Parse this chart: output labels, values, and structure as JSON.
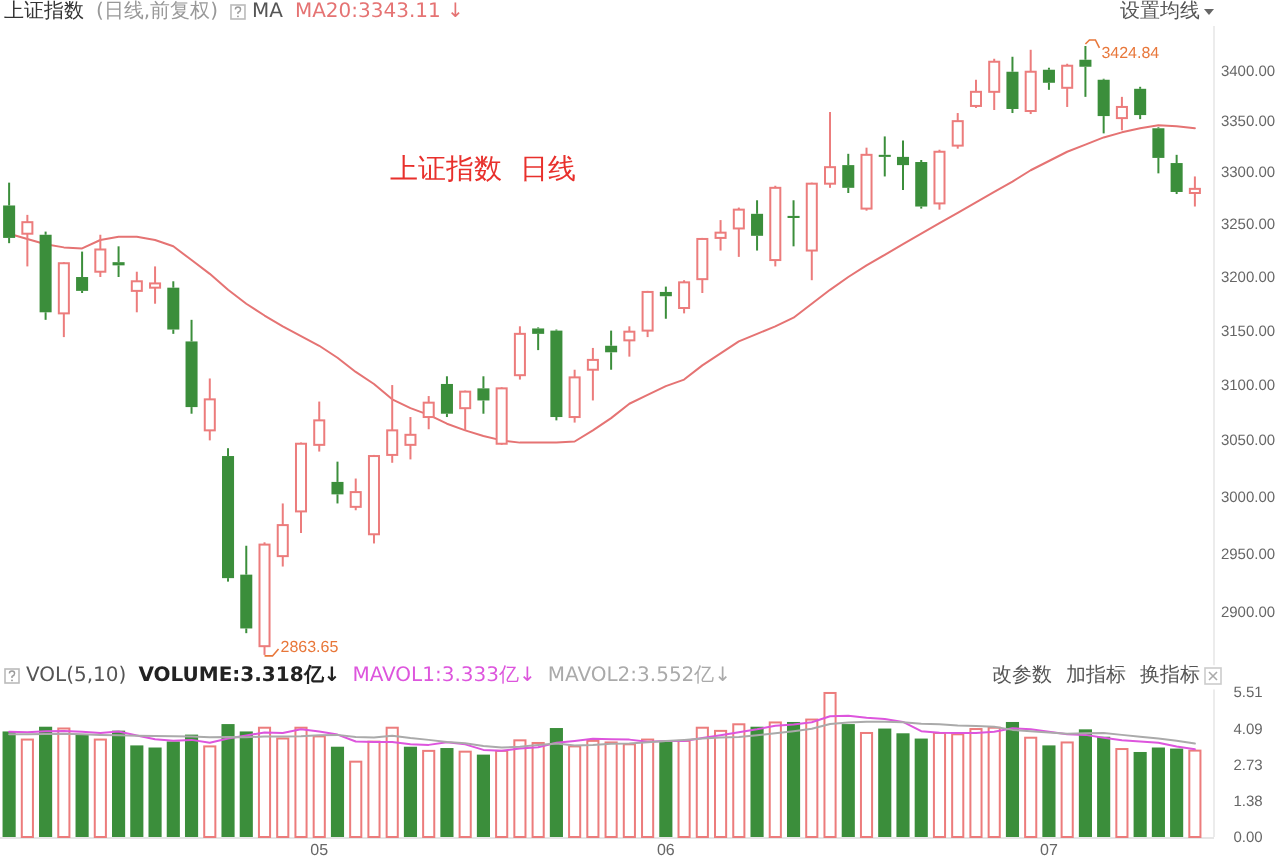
{
  "chart_data": [
    {
      "type": "candlestick",
      "title": "上证指数",
      "subtitle": "(日线,前复权)",
      "legend_title": "MA",
      "legend": "top left",
      "log": true,
      "categories": [
        null,
        null,
        null,
        null,
        null,
        null,
        null,
        null,
        null,
        null,
        null,
        null,
        null,
        null,
        null,
        null,
        null,
        null,
        null,
        null,
        null,
        null,
        null,
        null,
        null,
        null,
        null,
        null,
        null,
        null,
        null,
        null,
        null,
        null,
        null,
        null,
        null,
        null,
        null,
        null,
        null,
        null,
        null,
        null,
        null,
        null,
        null,
        null,
        null,
        null,
        null,
        null,
        null,
        null,
        null,
        null,
        null,
        null,
        null,
        null,
        null,
        null,
        null,
        null,
        null,
        null
      ],
      "ohlc": [
        [
          3268,
          3290,
          3232,
          3237
        ],
        [
          3241,
          3259,
          3210,
          3252
        ],
        [
          3240,
          3243,
          3160,
          3167
        ],
        [
          3166,
          3214,
          3144,
          3213
        ],
        [
          3200,
          3224,
          3185,
          3187
        ],
        [
          3205,
          3240,
          3200,
          3226
        ],
        [
          3214,
          3229,
          3200,
          3211
        ],
        [
          3187,
          3205,
          3167,
          3196
        ],
        [
          3190,
          3210,
          3175,
          3194
        ],
        [
          3190,
          3196,
          3147,
          3151
        ],
        [
          3140,
          3160,
          3074,
          3080
        ],
        [
          3059,
          3106,
          3050,
          3087
        ],
        [
          3036,
          3043,
          2926,
          2929
        ],
        [
          2932,
          2957,
          2882,
          2886
        ],
        [
          2871,
          2960,
          2863.65,
          2958
        ],
        [
          2948,
          2994,
          2939,
          2975
        ],
        [
          2987,
          3048,
          2968,
          3047
        ],
        [
          3046,
          3085,
          3040,
          3068
        ],
        [
          3013,
          3031,
          2994,
          3002
        ],
        [
          2991,
          3016,
          2988,
          3004
        ],
        [
          2967,
          3037,
          2959,
          3036
        ],
        [
          3037,
          3100,
          3030,
          3059
        ],
        [
          3046,
          3071,
          3033,
          3055
        ],
        [
          3071,
          3090,
          3060,
          3084
        ],
        [
          3101,
          3108,
          3071,
          3074
        ],
        [
          3079,
          3095,
          3059,
          3094
        ],
        [
          3097,
          3108,
          3074,
          3086
        ],
        [
          3047,
          3098,
          3046,
          3097
        ],
        [
          3109,
          3154,
          3105,
          3147
        ],
        [
          3152,
          3153,
          3132,
          3147
        ],
        [
          3150,
          3151,
          3068,
          3071
        ],
        [
          3071,
          3114,
          3066,
          3107
        ],
        [
          3114,
          3134,
          3086,
          3123
        ],
        [
          3136,
          3150,
          3114,
          3130
        ],
        [
          3141,
          3154,
          3126,
          3149
        ],
        [
          3150,
          3187,
          3144,
          3186
        ],
        [
          3186,
          3191,
          3161,
          3182
        ],
        [
          3171,
          3197,
          3166,
          3195
        ],
        [
          3198,
          3237,
          3185,
          3236
        ],
        [
          3237,
          3254,
          3225,
          3242
        ],
        [
          3246,
          3266,
          3219,
          3264
        ],
        [
          3260,
          3273,
          3225,
          3239
        ],
        [
          3216,
          3287,
          3210,
          3285
        ],
        [
          3258,
          3273,
          3229,
          3256
        ],
        [
          3225,
          3290,
          3197,
          3289
        ],
        [
          3289,
          3359,
          3285,
          3305
        ],
        [
          3307,
          3318,
          3280,
          3285
        ],
        [
          3265,
          3324,
          3263,
          3317
        ],
        [
          3317,
          3335,
          3296,
          3315
        ],
        [
          3315,
          3331,
          3283,
          3307
        ],
        [
          3310,
          3312,
          3265,
          3267
        ],
        [
          3270,
          3322,
          3264,
          3320
        ],
        [
          3326,
          3358,
          3323,
          3350
        ],
        [
          3365,
          3391,
          3363,
          3379
        ],
        [
          3379,
          3412,
          3361,
          3409
        ],
        [
          3399,
          3414,
          3358,
          3362
        ],
        [
          3360,
          3421,
          3357,
          3399
        ],
        [
          3401,
          3403,
          3381,
          3388
        ],
        [
          3383,
          3407,
          3364,
          3405
        ],
        [
          3411,
          3424.84,
          3374,
          3404
        ],
        [
          3391,
          3392,
          3338,
          3355
        ],
        [
          3353,
          3374,
          3341,
          3364
        ],
        [
          3382,
          3384,
          3352,
          3356
        ],
        [
          3343,
          3344,
          3299,
          3314
        ],
        [
          3309,
          3317,
          3279,
          3281
        ],
        [
          3280,
          3296,
          3267,
          3284
        ]
      ],
      "colors": [
        "#3b8e3b",
        "#ec7c7c",
        "#3b8e3b",
        "#ec7c7c",
        "#3b8e3b",
        "#ec7c7c",
        "#3b8e3b",
        "#ec7c7c",
        "#ec7c7c",
        "#3b8e3b",
        "#3b8e3b",
        "#ec7c7c",
        "#3b8e3b",
        "#3b8e3b",
        "#ec7c7c",
        "#ec7c7c",
        "#ec7c7c",
        "#ec7c7c",
        "#3b8e3b",
        "#ec7c7c",
        "#ec7c7c",
        "#ec7c7c",
        "#ec7c7c",
        "#ec7c7c",
        "#3b8e3b",
        "#ec7c7c",
        "#3b8e3b",
        "#ec7c7c",
        "#ec7c7c",
        "#3b8e3b",
        "#3b8e3b",
        "#ec7c7c",
        "#ec7c7c",
        "#3b8e3b",
        "#ec7c7c",
        "#ec7c7c",
        "#3b8e3b",
        "#ec7c7c",
        "#ec7c7c",
        "#ec7c7c",
        "#ec7c7c",
        "#3b8e3b",
        "#ec7c7c",
        "#3b8e3b",
        "#ec7c7c",
        "#ec7c7c",
        "#3b8e3b",
        "#ec7c7c",
        "#3b8e3b",
        "#3b8e3b",
        "#3b8e3b",
        "#ec7c7c",
        "#ec7c7c",
        "#ec7c7c",
        "#ec7c7c",
        "#3b8e3b",
        "#ec7c7c",
        "#3b8e3b",
        "#ec7c7c",
        "#3b8e3b",
        "#3b8e3b",
        "#ec7c7c",
        "#3b8e3b",
        "#3b8e3b",
        "#3b8e3b",
        "#ec7c7c"
      ],
      "series": [
        {
          "name": "MA20:3343.11 ↓",
          "type": "line",
          "color": "#e57373",
          "values": [
            3241,
            3236,
            3231,
            3228,
            3227,
            3235,
            3238,
            3238,
            3235,
            3229,
            3216,
            3203,
            3188,
            3175,
            3164,
            3154,
            3145,
            3136,
            3125,
            3112,
            3101,
            3087,
            3079,
            3073,
            3065,
            3059,
            3054,
            3050,
            3048,
            3048,
            3048,
            3049,
            3059,
            3070,
            3083,
            3091,
            3099,
            3105,
            3118,
            3129,
            3140,
            3147,
            3154,
            3162,
            3175,
            3188,
            3200,
            3211,
            3221,
            3231,
            3241,
            3251,
            3261,
            3271,
            3281,
            3291,
            3302,
            3311,
            3320,
            3327,
            3334,
            3339,
            3343,
            3346,
            3345,
            3343
          ]
        }
      ],
      "ylim": [
        2855,
        3445
      ],
      "yticks": [
        {
          "value": 2900,
          "label": "2900.00"
        },
        {
          "value": 2950,
          "label": "2950.00"
        },
        {
          "value": 3000,
          "label": "3000.00"
        },
        {
          "value": 3050,
          "label": "3050.00"
        },
        {
          "value": 3100,
          "label": "3100.00"
        },
        {
          "value": 3150,
          "label": "3150.00"
        },
        {
          "value": 3200,
          "label": "3200.00"
        },
        {
          "value": 3250,
          "label": "3250.00"
        },
        {
          "value": 3300,
          "label": "3300.00"
        },
        {
          "value": 3350,
          "label": "3350.00"
        },
        {
          "value": 3400,
          "label": "3400.00"
        }
      ],
      "annotations": [
        "设置均线",
        "上证指数  日线",
        "3424.84",
        "2863.65"
      ]
    },
    {
      "type": "bar",
      "legend_title": "VOL(5,10)",
      "legend": "top left",
      "categories": [
        null,
        null,
        null,
        null,
        null,
        null,
        null,
        null,
        null,
        null,
        null,
        null,
        null,
        null,
        null,
        null,
        null,
        "05",
        null,
        null,
        null,
        null,
        null,
        null,
        null,
        null,
        null,
        null,
        null,
        null,
        null,
        null,
        null,
        null,
        null,
        null,
        "06",
        null,
        null,
        null,
        null,
        null,
        null,
        null,
        null,
        null,
        null,
        null,
        null,
        null,
        null,
        null,
        null,
        null,
        null,
        null,
        null,
        "07",
        null,
        null,
        null,
        null,
        null,
        null,
        null,
        null
      ],
      "series": [
        {
          "type": "bar",
          "colors": [
            "#3b8e3b",
            "#ec7c7c",
            "#3b8e3b",
            "#ec7c7c",
            "#3b8e3b",
            "#ec7c7c",
            "#3b8e3b",
            "#3b8e3b",
            "#3b8e3b",
            "#3b8e3b",
            "#3b8e3b",
            "#ec7c7c",
            "#3b8e3b",
            "#3b8e3b",
            "#ec7c7c",
            "#ec7c7c",
            "#ec7c7c",
            "#ec7c7c",
            "#3b8e3b",
            "#ec7c7c",
            "#ec7c7c",
            "#ec7c7c",
            "#3b8e3b",
            "#ec7c7c",
            "#3b8e3b",
            "#ec7c7c",
            "#3b8e3b",
            "#ec7c7c",
            "#ec7c7c",
            "#ec7c7c",
            "#3b8e3b",
            "#ec7c7c",
            "#ec7c7c",
            "#ec7c7c",
            "#ec7c7c",
            "#ec7c7c",
            "#3b8e3b",
            "#ec7c7c",
            "#ec7c7c",
            "#ec7c7c",
            "#ec7c7c",
            "#3b8e3b",
            "#ec7c7c",
            "#3b8e3b",
            "#ec7c7c",
            "#ec7c7c",
            "#3b8e3b",
            "#ec7c7c",
            "#3b8e3b",
            "#3b8e3b",
            "#3b8e3b",
            "#ec7c7c",
            "#ec7c7c",
            "#ec7c7c",
            "#ec7c7c",
            "#3b8e3b",
            "#ec7c7c",
            "#3b8e3b",
            "#ec7c7c",
            "#3b8e3b",
            "#3b8e3b",
            "#ec7c7c",
            "#3b8e3b",
            "#3b8e3b",
            "#3b8e3b",
            "#ec7c7c"
          ],
          "values": [
            4.01,
            3.74,
            4.19,
            4.16,
            3.89,
            3.74,
            4.04,
            3.48,
            3.4,
            3.63,
            3.89,
            3.48,
            4.29,
            4.01,
            4.19,
            3.78,
            4.19,
            3.86,
            3.43,
            2.9,
            3.66,
            4.19,
            3.43,
            3.31,
            3.38,
            3.28,
            3.13,
            3.31,
            3.71,
            3.61,
            4.14,
            3.48,
            3.69,
            3.63,
            3.56,
            3.74,
            3.63,
            3.69,
            4.19,
            4.07,
            4.32,
            4.19,
            4.39,
            4.37,
            4.5,
            5.51,
            4.29,
            3.99,
            4.12,
            3.94,
            3.74,
            3.99,
            3.94,
            4.14,
            4.19,
            4.37,
            3.81,
            3.48,
            3.63,
            4.09,
            3.81,
            3.38,
            3.23,
            3.4,
            3.36,
            3.32
          ]
        },
        {
          "name": "MAVOL1:3.333亿↓",
          "type": "line",
          "color": "#dd55dd",
          "values": [
            4.0,
            3.98,
            4.02,
            4.03,
            4.0,
            3.95,
            4.01,
            3.86,
            3.71,
            3.66,
            3.69,
            3.58,
            3.74,
            3.86,
            3.97,
            3.95,
            4.09,
            4.01,
            3.89,
            3.63,
            3.61,
            3.61,
            3.52,
            3.5,
            3.6,
            3.52,
            3.31,
            3.28,
            3.36,
            3.41,
            3.58,
            3.65,
            3.73,
            3.71,
            3.7,
            3.62,
            3.65,
            3.65,
            3.76,
            3.87,
            3.98,
            4.09,
            4.23,
            4.27,
            4.36,
            4.59,
            4.61,
            4.53,
            4.48,
            4.37,
            4.02,
            3.96,
            3.95,
            3.95,
            4.0,
            4.13,
            4.09,
            4.0,
            3.9,
            3.88,
            3.77,
            3.68,
            3.63,
            3.58,
            3.44,
            3.33
          ]
        },
        {
          "name": "MAVOL2:3.552亿↓",
          "type": "line",
          "color": "#aaaaaa",
          "values": [
            3.9,
            3.9,
            3.91,
            3.92,
            3.9,
            3.88,
            3.87,
            3.85,
            3.84,
            3.83,
            3.82,
            3.79,
            3.8,
            3.79,
            3.82,
            3.82,
            3.83,
            3.87,
            3.88,
            3.8,
            3.78,
            3.85,
            3.76,
            3.69,
            3.61,
            3.56,
            3.46,
            3.4,
            3.43,
            3.5,
            3.55,
            3.48,
            3.5,
            3.54,
            3.55,
            3.6,
            3.65,
            3.69,
            3.74,
            3.78,
            3.8,
            3.87,
            3.94,
            4.02,
            4.11,
            4.29,
            4.35,
            4.38,
            4.38,
            4.36,
            4.3,
            4.28,
            4.24,
            4.22,
            4.19,
            4.07,
            4.02,
            3.97,
            3.92,
            3.94,
            3.95,
            3.88,
            3.81,
            3.74,
            3.66,
            3.55
          ]
        }
      ],
      "ylim": [
        0,
        5.6
      ],
      "yticks": [
        {
          "value": 0,
          "label": "0.00"
        },
        1.38,
        2.73,
        4.09,
        5.51
      ],
      "annotations": [
        "VOLUME:3.318亿↓",
        "改参数",
        "加指标",
        "换指标"
      ]
    }
  ]
}
